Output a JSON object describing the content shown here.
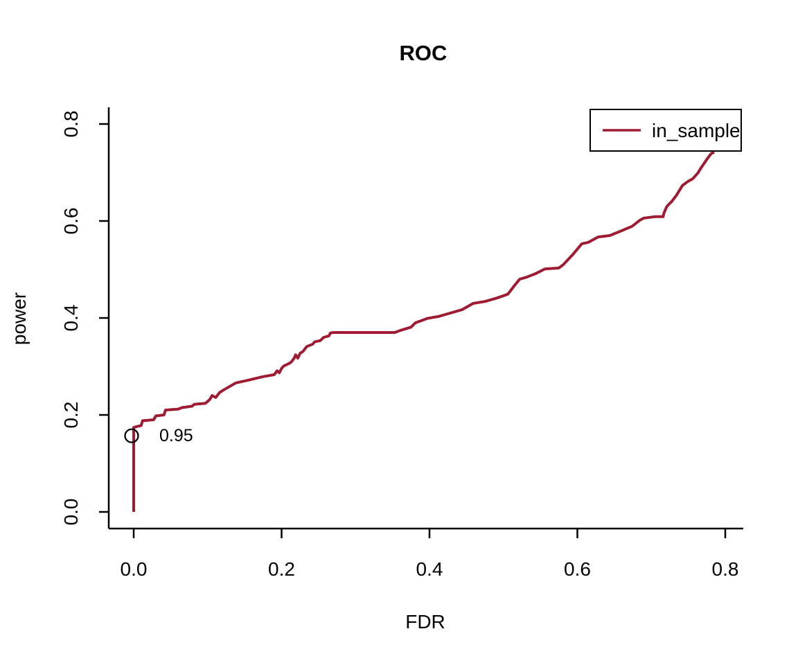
{
  "chart_data": {
    "type": "line",
    "title": "ROC",
    "xlabel": "FDR",
    "ylabel": "power",
    "xlim": [
      0.0,
      0.8
    ],
    "ylim": [
      0.0,
      0.8
    ],
    "xticks": [
      "0.0",
      "0.2",
      "0.4",
      "0.6",
      "0.8"
    ],
    "yticks": [
      "0.0",
      "0.2",
      "0.4",
      "0.6",
      "0.8"
    ],
    "grid": false,
    "background": "#ffffff",
    "axis_color": "#000000",
    "legend": {
      "position": "top-right",
      "entries": [
        {
          "label": "in_sample",
          "color": "#9E1B32"
        }
      ]
    },
    "series": [
      {
        "name": "in_sample",
        "color": "#9E1B32",
        "points": [
          [
            0.0,
            0.0
          ],
          [
            0.0,
            0.174
          ],
          [
            0.004,
            0.176
          ],
          [
            0.01,
            0.178
          ],
          [
            0.012,
            0.188
          ],
          [
            0.027,
            0.19
          ],
          [
            0.03,
            0.198
          ],
          [
            0.041,
            0.2
          ],
          [
            0.043,
            0.21
          ],
          [
            0.06,
            0.212
          ],
          [
            0.065,
            0.215
          ],
          [
            0.079,
            0.218
          ],
          [
            0.082,
            0.222
          ],
          [
            0.097,
            0.224
          ],
          [
            0.103,
            0.232
          ],
          [
            0.106,
            0.24
          ],
          [
            0.111,
            0.236
          ],
          [
            0.116,
            0.246
          ],
          [
            0.121,
            0.251
          ],
          [
            0.138,
            0.266
          ],
          [
            0.156,
            0.272
          ],
          [
            0.175,
            0.279
          ],
          [
            0.19,
            0.283
          ],
          [
            0.194,
            0.291
          ],
          [
            0.197,
            0.287
          ],
          [
            0.2,
            0.296
          ],
          [
            0.203,
            0.301
          ],
          [
            0.21,
            0.306
          ],
          [
            0.213,
            0.309
          ],
          [
            0.217,
            0.317
          ],
          [
            0.219,
            0.324
          ],
          [
            0.222,
            0.317
          ],
          [
            0.225,
            0.327
          ],
          [
            0.229,
            0.331
          ],
          [
            0.234,
            0.341
          ],
          [
            0.242,
            0.346
          ],
          [
            0.245,
            0.351
          ],
          [
            0.252,
            0.353
          ],
          [
            0.257,
            0.36
          ],
          [
            0.264,
            0.363
          ],
          [
            0.266,
            0.369
          ],
          [
            0.27,
            0.37
          ],
          [
            0.353,
            0.37
          ],
          [
            0.36,
            0.374
          ],
          [
            0.375,
            0.381
          ],
          [
            0.381,
            0.39
          ],
          [
            0.397,
            0.399
          ],
          [
            0.412,
            0.403
          ],
          [
            0.428,
            0.41
          ],
          [
            0.444,
            0.417
          ],
          [
            0.459,
            0.43
          ],
          [
            0.475,
            0.434
          ],
          [
            0.491,
            0.441
          ],
          [
            0.506,
            0.449
          ],
          [
            0.515,
            0.467
          ],
          [
            0.522,
            0.48
          ],
          [
            0.531,
            0.484
          ],
          [
            0.543,
            0.491
          ],
          [
            0.556,
            0.501
          ],
          [
            0.575,
            0.503
          ],
          [
            0.581,
            0.51
          ],
          [
            0.594,
            0.531
          ],
          [
            0.606,
            0.553
          ],
          [
            0.615,
            0.556
          ],
          [
            0.628,
            0.567
          ],
          [
            0.644,
            0.57
          ],
          [
            0.66,
            0.58
          ],
          [
            0.674,
            0.589
          ],
          [
            0.684,
            0.601
          ],
          [
            0.69,
            0.606
          ],
          [
            0.706,
            0.609
          ],
          [
            0.716,
            0.609
          ],
          [
            0.717,
            0.616
          ],
          [
            0.721,
            0.63
          ],
          [
            0.728,
            0.641
          ],
          [
            0.734,
            0.653
          ],
          [
            0.742,
            0.673
          ],
          [
            0.749,
            0.681
          ],
          [
            0.756,
            0.687
          ],
          [
            0.763,
            0.699
          ],
          [
            0.767,
            0.709
          ],
          [
            0.772,
            0.72
          ],
          [
            0.775,
            0.727
          ],
          [
            0.781,
            0.739
          ],
          [
            0.785,
            0.742
          ]
        ]
      }
    ],
    "annotations": [
      {
        "type": "point-marker",
        "shape": "open-circle",
        "marker_color": "#000000",
        "at": [
          0.0,
          0.157
        ],
        "label": "0.95",
        "label_color": "#9E1B32"
      }
    ]
  }
}
